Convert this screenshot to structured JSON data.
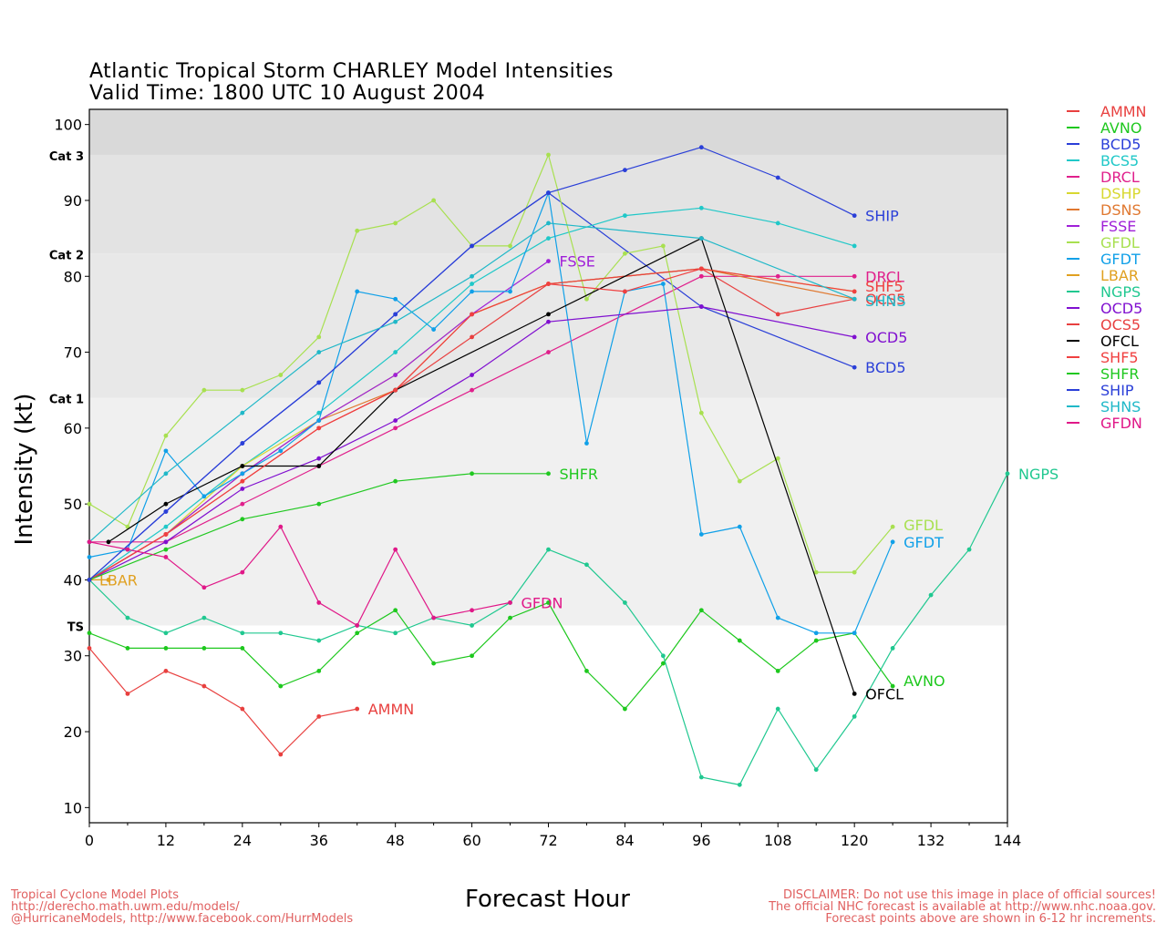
{
  "header": {
    "title": "Atlantic Tropical Storm CHARLEY Model Intensities",
    "subtitle": "Valid Time: 1800 UTC 10 August 2004"
  },
  "footer": {
    "left_lines": [
      "Tropical Cyclone Model Plots",
      "http://derecho.math.uwm.edu/models/",
      "@HurricaneModels, http://www.facebook.com/HurrModels"
    ],
    "right_lines": [
      "DISCLAIMER: Do not use this image in place of official sources!",
      "The official NHC forecast is available at http://www.nhc.noaa.gov.",
      "Forecast points above are shown in 6-12 hr increments."
    ]
  },
  "chart_data": {
    "type": "line",
    "title": "Atlantic Tropical Storm CHARLEY Model Intensities",
    "subtitle": "Valid Time: 1800 UTC 10 August 2004",
    "xlabel": "Forecast Hour",
    "ylabel": "Intensity (kt)",
    "xlim": [
      0,
      144
    ],
    "ylim": [
      8,
      102
    ],
    "xticks": [
      0,
      12,
      24,
      36,
      48,
      60,
      72,
      84,
      96,
      108,
      120,
      132,
      144
    ],
    "yticks": [
      10,
      20,
      30,
      40,
      50,
      60,
      70,
      80,
      90,
      100
    ],
    "category_bands": [
      {
        "label": "TS",
        "from": 34,
        "to": 64,
        "color": "#f0f0f0"
      },
      {
        "label": "Cat 1",
        "from": 64,
        "to": 83,
        "color": "#e8e8e8"
      },
      {
        "label": "Cat 2",
        "from": 83,
        "to": 96,
        "color": "#e3e3e3"
      },
      {
        "label": "Cat 3",
        "from": 96,
        "to": 102,
        "color": "#d9d9d9"
      }
    ],
    "legend_position": "right",
    "series": [
      {
        "name": "AMMN",
        "color": "#e8403f",
        "end_label": "AMMN",
        "x": [
          0,
          6,
          12,
          18,
          24,
          30,
          36,
          42
        ],
        "y": [
          31,
          25,
          28,
          26,
          23,
          17,
          22,
          23
        ]
      },
      {
        "name": "AVNO",
        "color": "#1ec81e",
        "end_label": "AVNO",
        "x": [
          0,
          6,
          12,
          18,
          24,
          30,
          36,
          42,
          48,
          54,
          60,
          66,
          72,
          78,
          84,
          90,
          96,
          102,
          108,
          114,
          120,
          126
        ],
        "y": [
          33,
          31,
          31,
          31,
          31,
          26,
          28,
          33,
          36,
          29,
          30,
          35,
          37,
          28,
          23,
          29,
          36,
          32,
          28,
          32,
          33,
          26
        ]
      },
      {
        "name": "BCD5",
        "color": "#2a3fd8",
        "end_label": "BCD5",
        "x": [
          0,
          12,
          24,
          36,
          48,
          60,
          72,
          96,
          120
        ],
        "y": [
          40,
          49,
          58,
          66,
          75,
          84,
          91,
          76,
          68
        ]
      },
      {
        "name": "BCS5",
        "color": "#20c8c8",
        "end_label": "",
        "x": [
          0,
          12,
          24,
          36,
          48,
          60,
          72,
          84,
          96,
          108,
          120
        ],
        "y": [
          40,
          47,
          55,
          62,
          70,
          79,
          85,
          88,
          89,
          87,
          84
        ]
      },
      {
        "name": "DRCL",
        "color": "#e0208c",
        "end_label": "DRCL",
        "x": [
          0,
          12,
          24,
          36,
          48,
          60,
          72,
          96,
          108,
          120
        ],
        "y": [
          45,
          45,
          50,
          55,
          60,
          65,
          70,
          80,
          80,
          80
        ]
      },
      {
        "name": "DSHP",
        "color": "#d8d830",
        "end_label": "",
        "x": [
          0,
          12,
          24,
          36,
          48,
          60,
          72,
          96,
          120
        ],
        "y": [
          40,
          46,
          55,
          61,
          67,
          75,
          79,
          81,
          78
        ]
      },
      {
        "name": "DSNS",
        "color": "#e07830",
        "end_label": "",
        "x": [
          0,
          12,
          24,
          36,
          48,
          60,
          72,
          96,
          120
        ],
        "y": [
          40,
          46,
          54,
          61,
          65,
          75,
          79,
          81,
          77
        ]
      },
      {
        "name": "FSSE",
        "color": "#a020d8",
        "end_label": "FSSE",
        "x": [
          0,
          12,
          24,
          36,
          48,
          60,
          72
        ],
        "y": [
          40,
          46,
          54,
          61,
          67,
          75,
          82
        ]
      },
      {
        "name": "GFDL",
        "color": "#a8e050",
        "end_label": "GFDL",
        "x": [
          0,
          6,
          12,
          18,
          24,
          30,
          36,
          42,
          48,
          54,
          60,
          66,
          72,
          78,
          84,
          90,
          96,
          102,
          108,
          114,
          120,
          126
        ],
        "y": [
          50,
          47,
          59,
          65,
          65,
          67,
          72,
          86,
          87,
          90,
          84,
          84,
          96,
          77,
          83,
          84,
          62,
          53,
          56,
          41,
          41,
          47
        ]
      },
      {
        "name": "GFDT",
        "color": "#10a0e8",
        "end_label": "GFDT",
        "x": [
          0,
          6,
          12,
          18,
          24,
          30,
          36,
          42,
          48,
          54,
          60,
          66,
          72,
          78,
          84,
          90,
          96,
          102,
          108,
          114,
          120,
          126
        ],
        "y": [
          43,
          44,
          57,
          51,
          54,
          57,
          61,
          78,
          77,
          73,
          78,
          78,
          91,
          58,
          78,
          79,
          46,
          47,
          35,
          33,
          33,
          45
        ]
      },
      {
        "name": "LBAR",
        "color": "#e0a020",
        "end_label": "LBAR",
        "x": [
          0,
          3
        ],
        "y": [
          40,
          40
        ]
      },
      {
        "name": "NGPS",
        "color": "#20c890",
        "end_label": "NGPS",
        "x": [
          0,
          6,
          12,
          18,
          24,
          30,
          36,
          42,
          48,
          54,
          60,
          66,
          72,
          78,
          84,
          90,
          96,
          102,
          108,
          114,
          120,
          126,
          132,
          138,
          144
        ],
        "y": [
          40,
          35,
          33,
          35,
          33,
          33,
          32,
          34,
          33,
          35,
          34,
          37,
          44,
          42,
          37,
          30,
          14,
          13,
          23,
          15,
          22,
          31,
          38,
          44,
          54
        ]
      },
      {
        "name": "OCD5",
        "color": "#8010d0",
        "end_label": "OCD5",
        "x": [
          0,
          12,
          24,
          36,
          48,
          60,
          72,
          96,
          120
        ],
        "y": [
          40,
          45,
          52,
          56,
          61,
          67,
          74,
          76,
          72
        ]
      },
      {
        "name": "OCS5",
        "color": "#e84040",
        "end_label": "OCS5",
        "x": [
          0,
          12,
          24,
          36,
          48,
          60,
          72,
          96,
          108,
          120
        ],
        "y": [
          40,
          46,
          53,
          60,
          65,
          72,
          79,
          81,
          75,
          77
        ]
      },
      {
        "name": "OFCL",
        "color": "#000000",
        "end_label": "OFCL",
        "x": [
          3,
          12,
          24,
          36,
          48,
          72,
          96,
          120
        ],
        "y": [
          45,
          50,
          55,
          55,
          65,
          75,
          85,
          25
        ]
      },
      {
        "name": "SHF5",
        "color": "#f04040",
        "end_label": "SHF5",
        "x": [
          0,
          12,
          24,
          36,
          48,
          60,
          72,
          84,
          96,
          120
        ],
        "y": [
          40,
          46,
          53,
          60,
          65,
          75,
          79,
          78,
          81,
          78
        ]
      },
      {
        "name": "SHFR",
        "color": "#20c820",
        "end_label": "SHFR",
        "x": [
          0,
          12,
          24,
          36,
          48,
          60,
          72
        ],
        "y": [
          40,
          44,
          48,
          50,
          53,
          54,
          54
        ]
      },
      {
        "name": "SHIP",
        "color": "#2a3fd8",
        "end_label": "SHIP",
        "x": [
          0,
          12,
          24,
          36,
          48,
          60,
          72,
          84,
          96,
          108,
          120
        ],
        "y": [
          40,
          49,
          58,
          66,
          75,
          84,
          91,
          94,
          97,
          93,
          88
        ]
      },
      {
        "name": "SHNS",
        "color": "#20b8c8",
        "end_label": "SHNS",
        "x": [
          0,
          12,
          24,
          36,
          48,
          60,
          72,
          96,
          120
        ],
        "y": [
          45,
          54,
          62,
          70,
          74,
          80,
          87,
          85,
          77
        ]
      },
      {
        "name": "GFDN",
        "color": "#e01888",
        "end_label": "GFDN",
        "x": [
          0,
          6,
          12,
          18,
          24,
          30,
          36,
          42,
          48,
          54,
          60,
          66
        ],
        "y": [
          45,
          44,
          43,
          39,
          41,
          47,
          37,
          34,
          44,
          35,
          36,
          37
        ]
      }
    ]
  }
}
